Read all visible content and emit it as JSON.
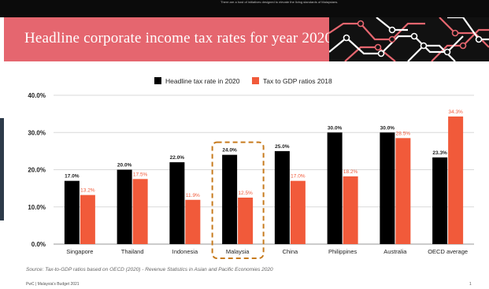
{
  "header": {
    "top_text": "There are a host of initiatives designed to elevate the living standards of Malaysians.",
    "title": "Headline corporate income tax rates for year 2020"
  },
  "colors": {
    "banner": "#e5666f",
    "series1": "#000000",
    "series2": "#f15a3a",
    "highlight": "#c77b1e"
  },
  "chart_data": {
    "type": "bar",
    "categories": [
      "Singapore",
      "Thailand",
      "Indonesia",
      "Malaysia",
      "China",
      "Philippines",
      "Australia",
      "OECD average"
    ],
    "series": [
      {
        "name": "Headline tax rate in 2020",
        "values": [
          17.0,
          20.0,
          22.0,
          24.0,
          25.0,
          30.0,
          30.0,
          23.3
        ],
        "labels": [
          "17.0%",
          "20.0%",
          "22.0%",
          "24.0%",
          "25.0%",
          "30.0%",
          "30.0%",
          "23.3%"
        ]
      },
      {
        "name": "Tax to GDP ratios 2018",
        "values": [
          13.2,
          17.5,
          11.9,
          12.5,
          17.0,
          18.2,
          28.5,
          34.3
        ],
        "labels": [
          "13.2%",
          "17.5%",
          "11.9%",
          "12.5%",
          "17.0%",
          "18.2%",
          "28.5%",
          "34.3%"
        ]
      }
    ],
    "y_ticks": [
      "0.0%",
      "10.0%",
      "20.0%",
      "30.0%",
      "40.0%"
    ],
    "ylim": [
      0,
      40
    ],
    "grid": true,
    "legend": "top-center",
    "highlight_category": "Malaysia"
  },
  "footer": {
    "source": "Source: Tax-to-GDP ratios based on OECD (2020) - Revenue Statistics in Asian and Pacific Economies 2020",
    "left": "PwC | Malaysia's Budget 2021",
    "page": "1"
  }
}
